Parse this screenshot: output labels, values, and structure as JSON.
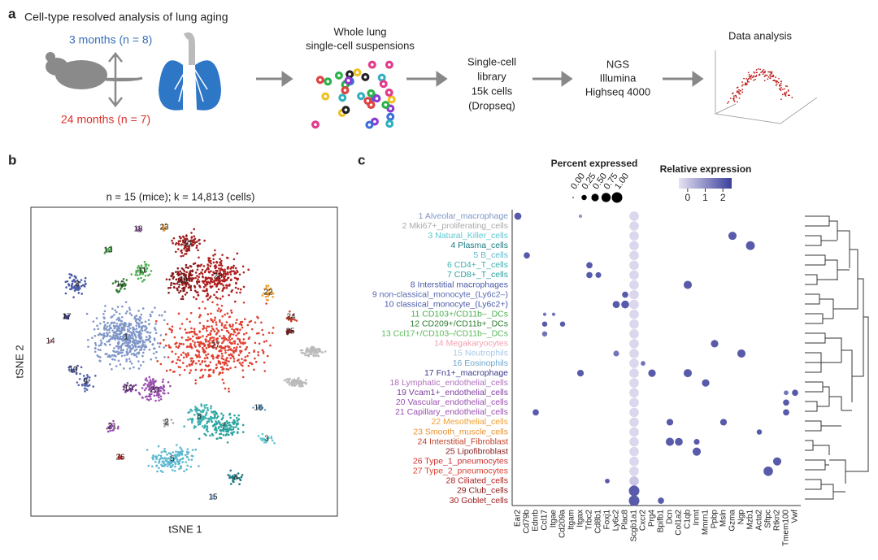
{
  "panel_a": {
    "label": "a",
    "title": "Cell-type resolved analysis of lung aging",
    "group_young": "3 months (n = 8)",
    "group_old": "24 months (n = 7)",
    "step1": [
      "Whole lung",
      "single-cell suspensions"
    ],
    "step2": [
      "Single-cell",
      "library",
      "15k cells",
      "(Dropseq)"
    ],
    "step3": [
      "NGS",
      "Illumina",
      "Highseq 4000"
    ],
    "step4": "Data analysis"
  },
  "panel_b": {
    "label": "b",
    "title": "n = 15 (mice); k = 14,813 (cells)",
    "xlabel": "tSNE 1",
    "ylabel": "tSNE 2",
    "clusters": [
      "1",
      "2",
      "3",
      "4",
      "5",
      "6",
      "7",
      "8",
      "9",
      "10",
      "11",
      "12",
      "13",
      "14",
      "15",
      "16",
      "17",
      "18",
      "19",
      "20",
      "21",
      "22",
      "23",
      "24",
      "25",
      "26",
      "27",
      "28",
      "29",
      "30"
    ]
  },
  "panel_c": {
    "label": "c",
    "cell_types": [
      "1 Alveolar_macrophage",
      "2 Mki67+_proliferating_cells",
      "3 Natural_Killer_cells",
      "4 Plasma_cells",
      "5 B_cells",
      "6 CD4+_T_cells",
      "7 CD8+_T_cells",
      "8 Interstitial macrophages",
      "9 non-classical_monocyte_(Ly6c2–)",
      "10 classical_monocyte_(Ly6c2+)",
      "11 CD103+/CD11b–_DCs",
      "12 CD209+/CD11b+_DCs",
      "13 Ccl17+/CD103–/CD11b–_DCs",
      "14 Megakaryocytes",
      "15 Neutrophils",
      "16 Eosinophils",
      "17 Fn1+_macrophage",
      "18 Lymphatic_endothelial_cells",
      "19 Vcam1+_endothelial_cells",
      "20 Vascular_endothelial_cells",
      "21 Capillary_endothelial_cells",
      "22 Mesothelial_cells",
      "23 Smooth_muscle_cells",
      "24 Interstitial_Fibroblast",
      "25 Lipofibroblast",
      "26 Type_1_pneumocytes",
      "27 Type_2_pneumocytes",
      "28 Ciliated_cells",
      "29 Club_cells",
      "30 Goblet_cells"
    ],
    "row_colors": [
      "#7f96c8",
      "#aaaaaa",
      "#5cc8d0",
      "#1b7b80",
      "#5cb8d0",
      "#3ab0b0",
      "#29a39f",
      "#4a5aa8",
      "#5a68b0",
      "#4a5aa8",
      "#4caf50",
      "#2e7d32",
      "#5cb85c",
      "#f4a0b0",
      "#a8c8e8",
      "#6fa8d0",
      "#3c3c8c",
      "#b070c0",
      "#8040a0",
      "#9a50b0",
      "#9a50b0",
      "#f0a030",
      "#e8902a",
      "#c0402a",
      "#8a2020",
      "#d03030",
      "#e04030",
      "#b02020",
      "#8a1a1a",
      "#a02020"
    ],
    "genes": [
      "Ear2",
      "Cd79b",
      "Ednrb",
      "Ccl17",
      "Itgae",
      "Cd209a",
      "Itgam",
      "Itgax",
      "Trbc2",
      "Cd8b1",
      "Foxj1",
      "Ly6c2",
      "Plac8",
      "Scgb1a1",
      "Cxcr2",
      "Prg4",
      "Bpifb1",
      "Dcn",
      "Col1a2",
      "C1qb",
      "Inmt",
      "Mmrn1",
      "Ppbp",
      "Msln",
      "Gzma",
      "Ngp",
      "Mzb1",
      "Acta2",
      "Sftpc",
      "Rtkn2",
      "Tmem100",
      "Vwf"
    ],
    "size_legend": {
      "title": "Percent expressed",
      "ticks": [
        {
          "value": 0,
          "label": "0.00"
        },
        0.25,
        {
          "value": 0.5,
          "label": "0.50"
        },
        0.75,
        {
          "value": 1,
          "label": "1.00"
        }
      ]
    },
    "color_legend": {
      "title": "Relative expression",
      "ticks": [
        0,
        1,
        2
      ],
      "lim": [
        -0.5,
        2.5
      ],
      "colors": [
        "#e6e2f2",
        "#3b3f9c"
      ]
    },
    "dots": [
      [
        0,
        0,
        0.45,
        2
      ],
      [
        0,
        7,
        0.1,
        1
      ],
      [
        2,
        24,
        0.6,
        2
      ],
      [
        3,
        26,
        0.7,
        2
      ],
      [
        4,
        1,
        0.35,
        2
      ],
      [
        5,
        8,
        0.35,
        2
      ],
      [
        6,
        8,
        0.35,
        2
      ],
      [
        6,
        9,
        0.3,
        2
      ],
      [
        7,
        19,
        0.6,
        2
      ],
      [
        8,
        12,
        0.35,
        2
      ],
      [
        9,
        11,
        0.45,
        2
      ],
      [
        9,
        12,
        0.55,
        2
      ],
      [
        10,
        3,
        0.1,
        1.5
      ],
      [
        10,
        4,
        0.1,
        1.5
      ],
      [
        11,
        3,
        0.25,
        2
      ],
      [
        11,
        5,
        0.25,
        2
      ],
      [
        12,
        3,
        0.25,
        1.5
      ],
      [
        13,
        22,
        0.5,
        2
      ],
      [
        14,
        25,
        0.6,
        2
      ],
      [
        14,
        11,
        0.3,
        1.5
      ],
      [
        15,
        14,
        0.2,
        1.5
      ],
      [
        16,
        7,
        0.4,
        2
      ],
      [
        16,
        15,
        0.5,
        2
      ],
      [
        16,
        19,
        0.6,
        2
      ],
      [
        17,
        21,
        0.5,
        2
      ],
      [
        18,
        31,
        0.35,
        2
      ],
      [
        18,
        30,
        0.2,
        1.5
      ],
      [
        19,
        30,
        0.35,
        2
      ],
      [
        20,
        2,
        0.35,
        2
      ],
      [
        20,
        30,
        0.35,
        2
      ],
      [
        21,
        17,
        0.4,
        2
      ],
      [
        21,
        23,
        0.4,
        2
      ],
      [
        22,
        27,
        0.25,
        2
      ],
      [
        23,
        17,
        0.6,
        2
      ],
      [
        23,
        18,
        0.55,
        2
      ],
      [
        23,
        20,
        0.3,
        2
      ],
      [
        24,
        20,
        0.6,
        2
      ],
      [
        25,
        29,
        0.6,
        2
      ],
      [
        26,
        28,
        0.8,
        2
      ],
      [
        27,
        10,
        0.2,
        2
      ],
      [
        29,
        16,
        0.35,
        2
      ],
      [
        0,
        13,
        0.8,
        -0.3
      ],
      [
        1,
        13,
        0.8,
        -0.3
      ],
      [
        2,
        13,
        0.8,
        -0.3
      ],
      [
        3,
        13,
        0.8,
        -0.3
      ],
      [
        4,
        13,
        0.8,
        -0.3
      ],
      [
        5,
        13,
        0.8,
        -0.3
      ],
      [
        6,
        13,
        0.8,
        -0.3
      ],
      [
        7,
        13,
        0.8,
        -0.3
      ],
      [
        8,
        13,
        0.8,
        -0.3
      ],
      [
        9,
        13,
        0.8,
        -0.3
      ],
      [
        10,
        13,
        0.8,
        -0.3
      ],
      [
        11,
        13,
        0.8,
        -0.3
      ],
      [
        12,
        13,
        0.8,
        -0.3
      ],
      [
        13,
        13,
        0.8,
        -0.3
      ],
      [
        14,
        13,
        0.8,
        -0.3
      ],
      [
        15,
        13,
        0.8,
        -0.3
      ],
      [
        16,
        13,
        0.8,
        -0.3
      ],
      [
        17,
        13,
        0.8,
        -0.3
      ],
      [
        18,
        13,
        0.8,
        -0.3
      ],
      [
        19,
        13,
        0.8,
        -0.3
      ],
      [
        20,
        13,
        0.8,
        -0.3
      ],
      [
        21,
        13,
        0.8,
        -0.3
      ],
      [
        22,
        13,
        0.8,
        -0.3
      ],
      [
        23,
        13,
        0.8,
        -0.3
      ],
      [
        24,
        13,
        0.8,
        -0.3
      ],
      [
        25,
        13,
        0.8,
        -0.3
      ],
      [
        26,
        13,
        0.8,
        -0.3
      ],
      [
        27,
        13,
        0.8,
        0
      ],
      [
        28,
        13,
        1,
        2
      ],
      [
        29,
        13,
        1,
        2
      ]
    ]
  }
}
